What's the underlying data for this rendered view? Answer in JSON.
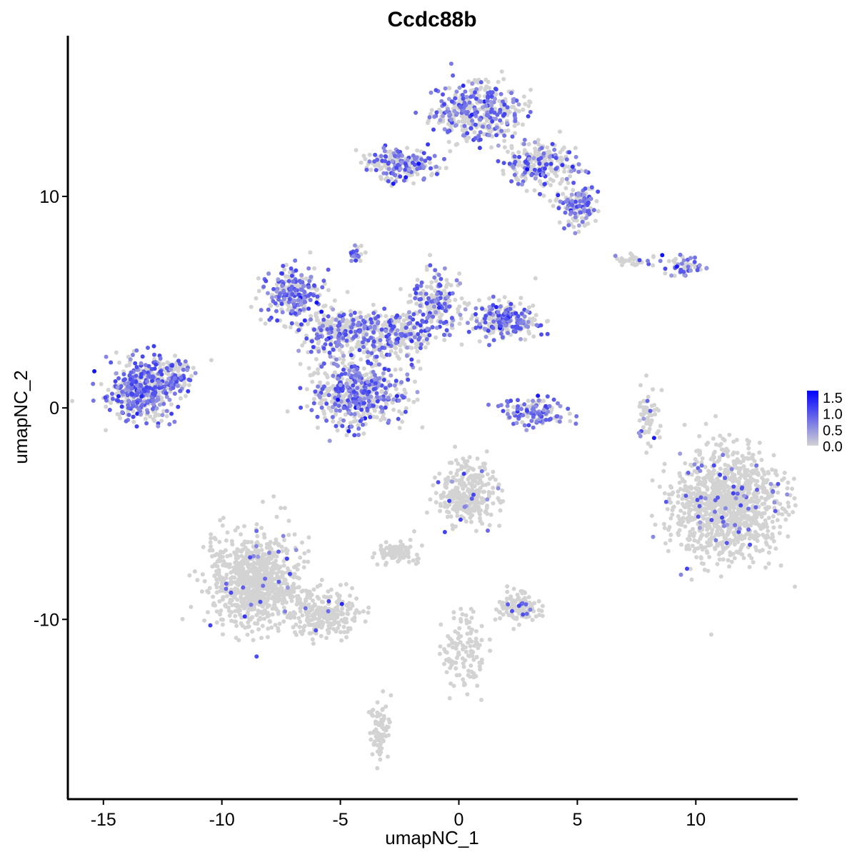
{
  "chart_data": {
    "type": "scatter",
    "title": "Ccdc88b",
    "xlabel": "umapNC_1",
    "ylabel": "umapNC_2",
    "xlim": [
      -16.5,
      14.3
    ],
    "ylim": [
      -18.5,
      17.6
    ],
    "x_ticks": [
      -15,
      -10,
      -5,
      0,
      5,
      10
    ],
    "x_tick_labels": [
      "-15",
      "-10",
      "-5",
      "0",
      "5",
      "10"
    ],
    "y_ticks": [
      -10,
      0,
      10
    ],
    "y_tick_labels": [
      "-10",
      "0",
      "10"
    ],
    "grid": false,
    "legend": {
      "position": "right",
      "type": "colorbar",
      "labels": [
        "1.5",
        "1.0",
        "0.5",
        "0.0"
      ],
      "values": [
        1.5,
        1.0,
        0.5,
        0.0
      ],
      "range": [
        0,
        1.7
      ],
      "color_low": "#d3d3d3",
      "color_high": "#0000ff"
    },
    "clusters": [
      {
        "x": -13.3,
        "y": 0.9,
        "sx": 1.0,
        "sy": 0.9,
        "n": 500,
        "expr": 0.5
      },
      {
        "x": -12.0,
        "y": 1.5,
        "sx": 0.5,
        "sy": 0.5,
        "n": 90,
        "expr": 0.4
      },
      {
        "x": -7.0,
        "y": 5.4,
        "sx": 0.8,
        "sy": 0.8,
        "n": 250,
        "expr": 0.5
      },
      {
        "x": -4.3,
        "y": 0.7,
        "sx": 1.3,
        "sy": 1.0,
        "n": 550,
        "expr": 0.4
      },
      {
        "x": -5.0,
        "y": 3.6,
        "sx": 1.1,
        "sy": 0.7,
        "n": 280,
        "expr": 0.35
      },
      {
        "x": -2.7,
        "y": 3.4,
        "sx": 1.1,
        "sy": 0.8,
        "n": 250,
        "expr": 0.35
      },
      {
        "x": -1.0,
        "y": 5.0,
        "sx": 0.7,
        "sy": 0.9,
        "n": 200,
        "expr": 0.4
      },
      {
        "x": 1.8,
        "y": 4.2,
        "sx": 1.0,
        "sy": 0.6,
        "n": 260,
        "expr": 0.4
      },
      {
        "x": 0.8,
        "y": 14.0,
        "sx": 1.2,
        "sy": 1.0,
        "n": 400,
        "expr": 0.4
      },
      {
        "x": -2.5,
        "y": 11.5,
        "sx": 1.0,
        "sy": 0.5,
        "n": 200,
        "expr": 0.45
      },
      {
        "x": 3.5,
        "y": 11.5,
        "sx": 1.0,
        "sy": 0.7,
        "n": 250,
        "expr": 0.4
      },
      {
        "x": 5.0,
        "y": 9.6,
        "sx": 0.6,
        "sy": 0.6,
        "n": 150,
        "expr": 0.4
      },
      {
        "x": 9.3,
        "y": 6.7,
        "sx": 0.7,
        "sy": 0.3,
        "n": 60,
        "expr": 0.5
      },
      {
        "x": 3.3,
        "y": -0.3,
        "sx": 0.9,
        "sy": 0.5,
        "n": 120,
        "expr": 0.6
      },
      {
        "x": 11.3,
        "y": -4.6,
        "sx": 1.5,
        "sy": 1.7,
        "n": 1100,
        "expr": 0.06
      },
      {
        "x": -8.6,
        "y": -8.2,
        "sx": 1.2,
        "sy": 1.4,
        "n": 900,
        "expr": 0.02
      },
      {
        "x": -5.6,
        "y": -9.8,
        "sx": 1.0,
        "sy": 0.7,
        "n": 250,
        "expr": 0.02
      },
      {
        "x": 0.3,
        "y": -4.1,
        "sx": 0.8,
        "sy": 1.0,
        "n": 300,
        "expr": 0.04
      },
      {
        "x": -2.6,
        "y": -6.8,
        "sx": 0.5,
        "sy": 0.3,
        "n": 100,
        "expr": 0.01
      },
      {
        "x": 2.5,
        "y": -9.4,
        "sx": 0.6,
        "sy": 0.5,
        "n": 120,
        "expr": 0.05
      },
      {
        "x": 0.2,
        "y": -11.5,
        "sx": 0.6,
        "sy": 1.2,
        "n": 120,
        "expr": 0.01
      },
      {
        "x": -3.3,
        "y": -15.2,
        "sx": 0.3,
        "sy": 0.9,
        "n": 80,
        "expr": 0.01
      },
      {
        "x": 8.0,
        "y": -0.2,
        "sx": 0.3,
        "sy": 1.0,
        "n": 60,
        "expr": 0.1
      },
      {
        "x": 7.3,
        "y": 7.0,
        "sx": 0.5,
        "sy": 0.2,
        "n": 30,
        "expr": 0.3
      },
      {
        "x": -4.3,
        "y": 7.2,
        "sx": 0.2,
        "sy": 0.3,
        "n": 25,
        "expr": 0.4
      }
    ]
  }
}
